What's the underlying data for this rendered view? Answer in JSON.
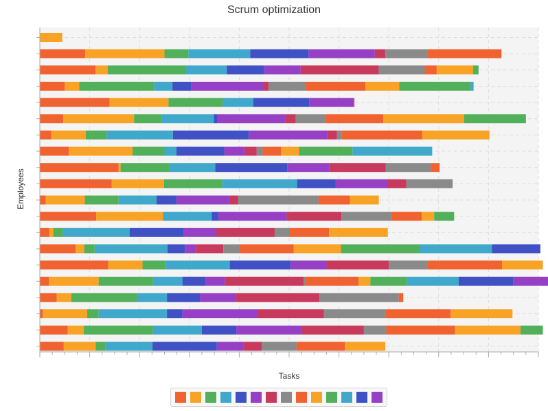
{
  "chart_data": {
    "type": "bar",
    "orientation": "horizontal",
    "stacked": true,
    "title": "Scrum optimization",
    "xlabel": "Tasks",
    "ylabel": "Employees",
    "grid": true,
    "legend_position": "bottom",
    "xlim": [
      0,
      100
    ],
    "categories": [
      "1",
      "2",
      "3",
      "4",
      "5",
      "6",
      "7",
      "8",
      "9",
      "10",
      "11",
      "12",
      "13",
      "14",
      "15",
      "16",
      "17",
      "18",
      "19",
      "20"
    ],
    "series_colors": [
      "#f0622f",
      "#f8a326",
      "#53b05a",
      "#40a8cb",
      "#3f51c4",
      "#9641c5",
      "#c7395d",
      "#8a8a8a",
      "#f0622f",
      "#f8a326",
      "#53b05a",
      "#40a8cb",
      "#3f51c4",
      "#9641c5"
    ],
    "rows": [
      [
        0,
        4.5,
        0,
        0,
        0,
        0,
        0,
        0,
        0,
        0,
        0,
        0,
        0,
        0
      ],
      [
        9.1,
        15.9,
        4.8,
        12.4,
        11.7,
        13.3,
        2.1,
        8.4,
        14.9,
        0,
        0,
        0,
        0,
        0
      ],
      [
        11.2,
        2.4,
        15.6,
        8.3,
        7.5,
        7.3,
        15.7,
        9.2,
        2.4,
        7.3,
        1.1,
        0,
        0,
        0
      ],
      [
        5.0,
        2.9,
        15.0,
        3.7,
        3.8,
        14.5,
        1.0,
        7.4,
        12.0,
        6.8,
        14.3,
        0.6,
        0,
        0
      ],
      [
        14.0,
        11.8,
        10.9,
        6.1,
        11.3,
        8.8,
        0.2,
        0,
        0,
        0,
        0,
        0,
        0,
        0
      ],
      [
        4.7,
        14.2,
        5.6,
        10.4,
        0.7,
        13.7,
        2.0,
        5.9,
        11.7,
        16.2,
        12.4,
        0,
        0,
        0
      ],
      [
        2.3,
        6.9,
        4.2,
        13.3,
        15.2,
        15.7,
        2.0,
        0.9,
        16.2,
        13.5,
        0,
        0,
        0,
        0
      ],
      [
        5.8,
        12.8,
        6.4,
        2.4,
        9.6,
        4.1,
        2.4,
        1.2,
        3.7,
        3.6,
        10.7,
        16.0,
        0,
        0
      ],
      [
        15.8,
        0.4,
        9.7,
        9.3,
        14.4,
        8.5,
        11.3,
        9.0,
        1.8,
        0,
        0,
        0,
        0,
        0
      ],
      [
        14.4,
        10.5,
        11.7,
        15.0,
        7.7,
        10.4,
        3.8,
        9.3,
        0,
        0,
        0,
        0,
        0,
        0
      ],
      [
        1.2,
        7.8,
        6.8,
        7.6,
        4.0,
        10.6,
        1.8,
        16.1,
        6.3,
        5.8,
        0,
        0,
        0,
        0
      ],
      [
        11.3,
        13.4,
        0,
        9.8,
        1.3,
        13.7,
        11.0,
        10.0,
        6.1,
        2.5,
        4.0,
        0,
        0,
        0
      ],
      [
        1.9,
        0.8,
        1.9,
        13.4,
        10.9,
        6.5,
        11.7,
        2.9,
        8.0,
        11.8,
        0,
        0,
        0,
        0
      ],
      [
        7.2,
        1.7,
        2.1,
        14.6,
        3.5,
        2.2,
        5.5,
        3.3,
        10.8,
        9.5,
        15.7,
        14.6,
        9.7,
        0
      ],
      [
        13.7,
        6.9,
        4.5,
        13.0,
        12.2,
        7.2,
        12.5,
        7.7,
        15.0,
        8.2,
        0,
        0,
        0,
        0
      ],
      [
        1.8,
        10.0,
        10.9,
        5.9,
        4.7,
        3.8,
        15.8,
        0.4,
        10.6,
        2.4,
        7.3,
        10.4,
        11.0,
        10.9
      ],
      [
        3.4,
        2.9,
        13.2,
        6.0,
        6.6,
        7.1,
        16.9,
        15.9,
        0.9,
        0,
        0,
        0,
        0,
        0
      ],
      [
        0.6,
        8.9,
        2.3,
        13.7,
        3.1,
        15.0,
        13.4,
        12.3,
        13.1,
        12.4,
        0,
        0,
        0,
        0
      ],
      [
        5.6,
        3.2,
        13.9,
        9.8,
        6.9,
        13.0,
        12.6,
        4.5,
        13.8,
        13.1,
        4.5,
        0,
        0,
        0
      ],
      [
        4.8,
        6.4,
        2.0,
        9.4,
        12.9,
        5.4,
        3.6,
        7.0,
        9.7,
        8.1,
        0,
        0,
        0,
        0
      ]
    ]
  }
}
